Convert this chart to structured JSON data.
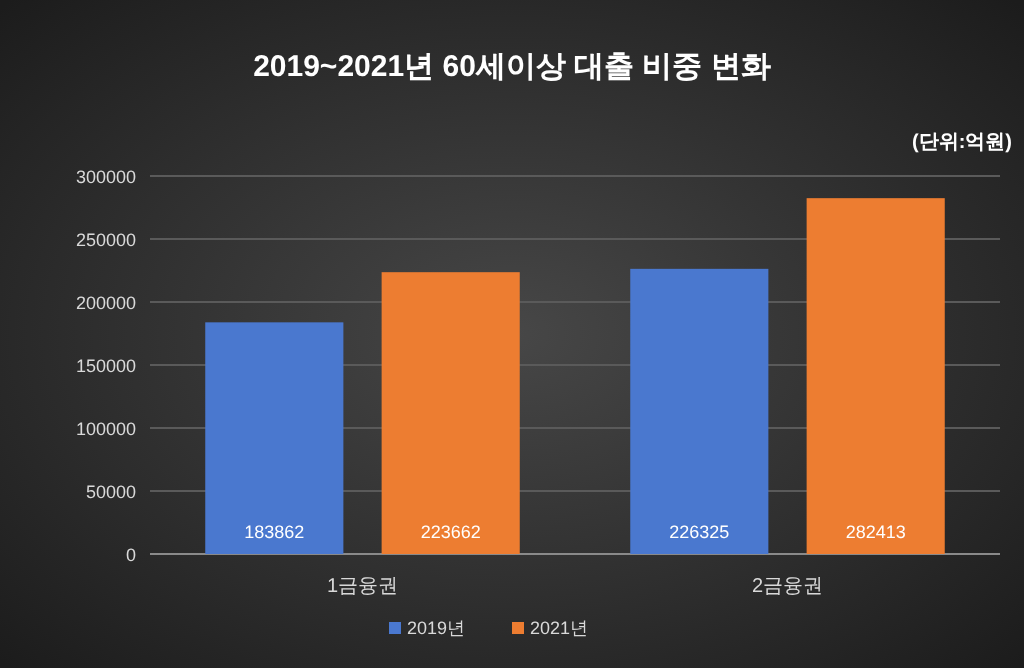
{
  "chart_data": {
    "type": "bar",
    "title": "2019~2021년 60세이상 대출 비중 변화",
    "annotations": [
      "(단위:억원)"
    ],
    "categories": [
      "1금융권",
      "2금융권"
    ],
    "series": [
      {
        "name": "2019년",
        "color": "#4a78cf",
        "values": [
          183862,
          226325
        ]
      },
      {
        "name": "2021년",
        "color": "#ed7d31",
        "values": [
          223662,
          282413
        ]
      }
    ],
    "ylim": [
      0,
      300000
    ],
    "yticks": [
      0,
      50000,
      100000,
      150000,
      200000,
      250000,
      300000
    ],
    "grid": "y",
    "legend": "bottom",
    "data_labels": true
  }
}
